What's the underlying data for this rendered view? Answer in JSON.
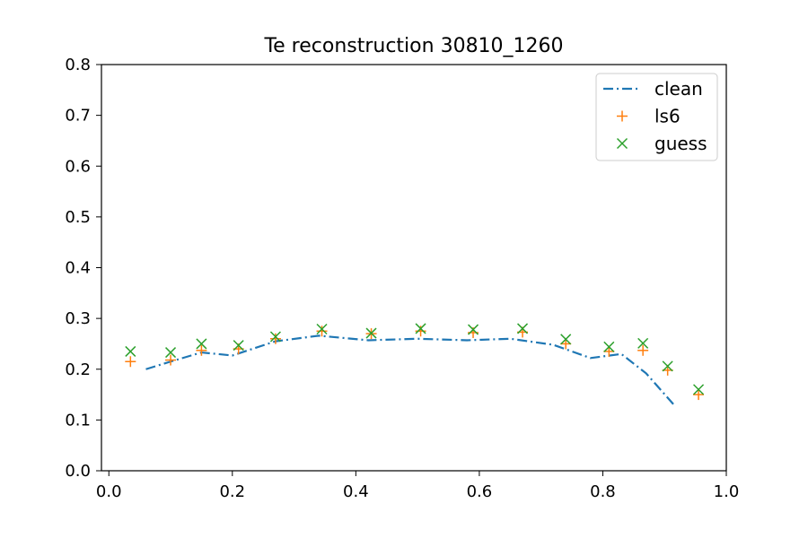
{
  "chart_data": {
    "type": "line",
    "title": "Te reconstruction 30810_1260",
    "xlabel": "",
    "ylabel": "",
    "xlim": [
      -0.012,
      1.0
    ],
    "ylim": [
      0.0,
      0.8
    ],
    "xticks": [
      {
        "value": 0.0,
        "label": "0.0"
      },
      {
        "value": 0.2,
        "label": "0.2"
      },
      {
        "value": 0.4,
        "label": "0.4"
      },
      {
        "value": 0.6,
        "label": "0.6"
      },
      {
        "value": 0.8,
        "label": "0.8"
      },
      {
        "value": 1.0,
        "label": "1.0"
      }
    ],
    "yticks": [
      {
        "value": 0.0,
        "label": "0.0"
      },
      {
        "value": 0.1,
        "label": "0.1"
      },
      {
        "value": 0.2,
        "label": "0.2"
      },
      {
        "value": 0.3,
        "label": "0.3"
      },
      {
        "value": 0.4,
        "label": "0.4"
      },
      {
        "value": 0.5,
        "label": "0.5"
      },
      {
        "value": 0.6,
        "label": "0.6"
      },
      {
        "value": 0.7,
        "label": "0.7"
      },
      {
        "value": 0.8,
        "label": "0.8"
      }
    ],
    "grid": false,
    "legend_position": "top-right",
    "series": [
      {
        "name": "clean",
        "style": "dashdot-line",
        "color": "#1f77b4",
        "x": [
          0.06,
          0.1,
          0.15,
          0.2,
          0.27,
          0.34,
          0.42,
          0.5,
          0.58,
          0.65,
          0.72,
          0.78,
          0.83,
          0.87,
          0.915
        ],
        "y": [
          0.2,
          0.215,
          0.233,
          0.227,
          0.255,
          0.266,
          0.257,
          0.26,
          0.257,
          0.26,
          0.248,
          0.222,
          0.23,
          0.192,
          0.13
        ]
      },
      {
        "name": "ls6",
        "style": "plus",
        "color": "#ff7f0e",
        "x": [
          0.035,
          0.1,
          0.15,
          0.21,
          0.27,
          0.345,
          0.425,
          0.505,
          0.59,
          0.67,
          0.74,
          0.81,
          0.865,
          0.905,
          0.955
        ],
        "y": [
          0.215,
          0.218,
          0.237,
          0.24,
          0.26,
          0.275,
          0.27,
          0.275,
          0.272,
          0.273,
          0.25,
          0.235,
          0.237,
          0.198,
          0.15
        ]
      },
      {
        "name": "guess",
        "style": "x",
        "color": "#2ca02c",
        "x": [
          0.035,
          0.1,
          0.15,
          0.21,
          0.27,
          0.345,
          0.425,
          0.505,
          0.59,
          0.67,
          0.74,
          0.81,
          0.865,
          0.905,
          0.955
        ],
        "y": [
          0.235,
          0.233,
          0.25,
          0.247,
          0.264,
          0.279,
          0.271,
          0.28,
          0.278,
          0.28,
          0.259,
          0.244,
          0.251,
          0.206,
          0.16
        ]
      }
    ]
  }
}
